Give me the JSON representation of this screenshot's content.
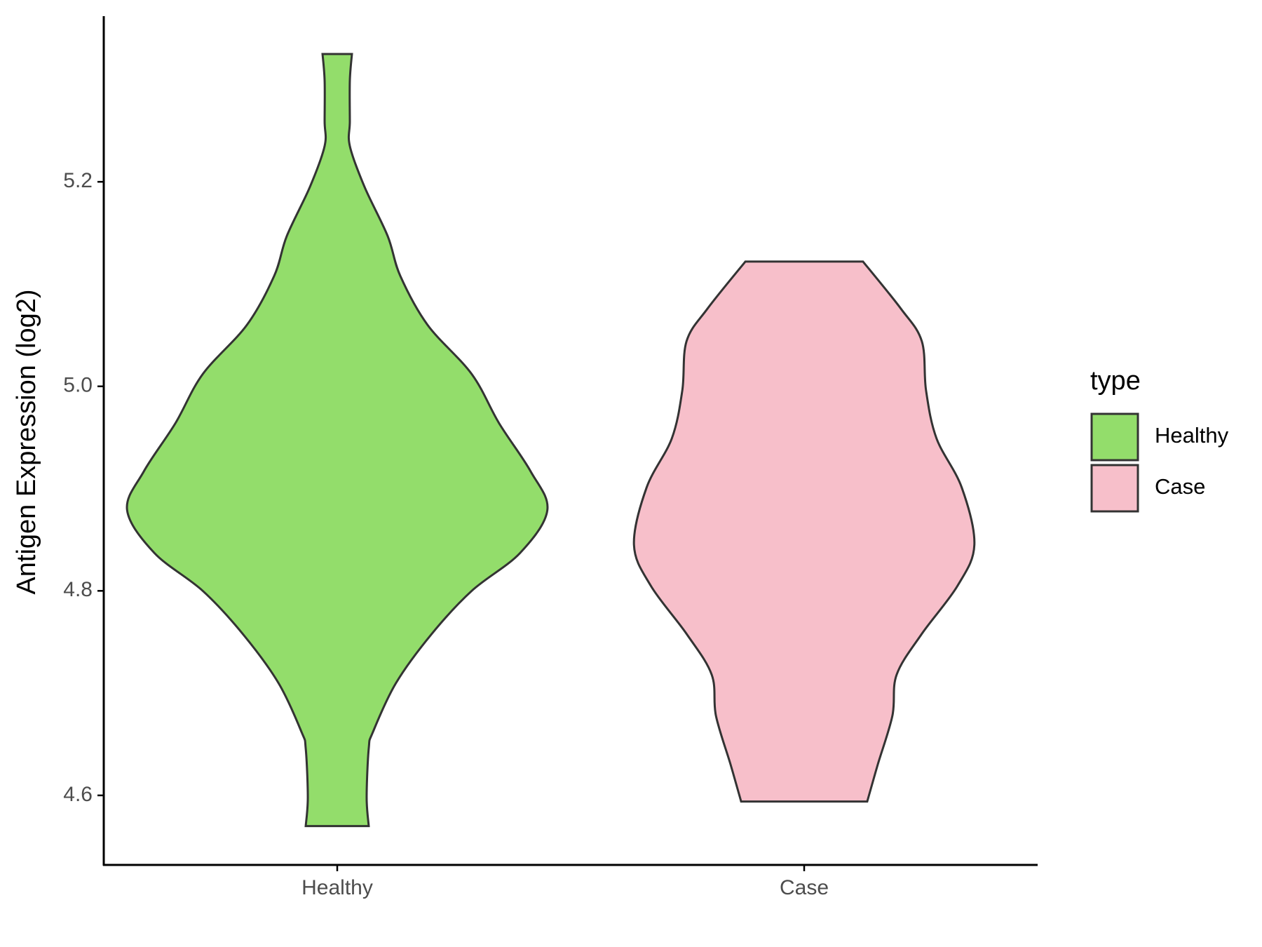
{
  "chart_data": {
    "type": "violin",
    "y_label": "Antigen Expression (log2)",
    "categories": [
      "Healthy",
      "Case"
    ],
    "legend_title": "type",
    "series": [
      {
        "name": "Healthy",
        "color": "#93dd6b",
        "density_y": [
          4.57,
          4.598,
          4.646,
          4.662,
          4.71,
          4.758,
          4.8,
          4.837,
          4.879,
          4.917,
          4.964,
          5.012,
          5.06,
          5.108,
          5.147,
          5.195,
          5.235,
          5.259,
          5.299,
          5.325
        ],
        "density": [
          0.15,
          0.14,
          0.15,
          0.17,
          0.28,
          0.45,
          0.64,
          0.87,
          1.0,
          0.92,
          0.77,
          0.64,
          0.43,
          0.3,
          0.24,
          0.13,
          0.06,
          0.06,
          0.06,
          0.07
        ]
      },
      {
        "name": "Case",
        "color": "#f7bfca",
        "density_y": [
          4.594,
          4.63,
          4.678,
          4.718,
          4.758,
          4.805,
          4.845,
          4.901,
          4.949,
          4.996,
          5.044,
          5.076,
          5.122
        ],
        "density": [
          0.3,
          0.35,
          0.42,
          0.44,
          0.56,
          0.73,
          0.81,
          0.75,
          0.63,
          0.58,
          0.56,
          0.46,
          0.28
        ]
      }
    ],
    "ylim": [
      4.532,
      5.362
    ],
    "yticks": [
      {
        "value": 4.6,
        "label": "4.6"
      },
      {
        "value": 4.8,
        "label": "4.8"
      },
      {
        "value": 5.0,
        "label": "5.0"
      },
      {
        "value": 5.2,
        "label": "5.2"
      }
    ],
    "grid": false,
    "legend_position": "right"
  }
}
